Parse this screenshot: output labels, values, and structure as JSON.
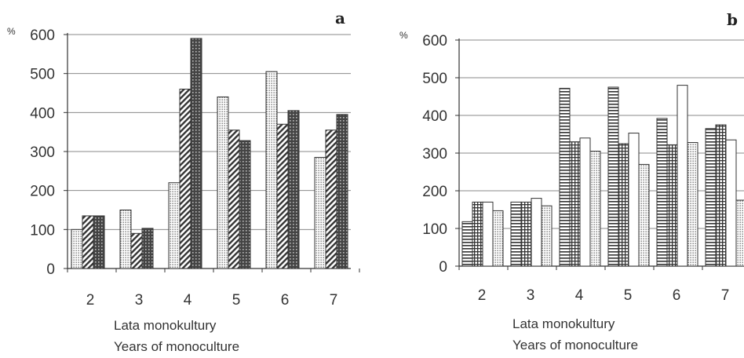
{
  "chart_data": [
    {
      "type": "bar",
      "panel_label": "a",
      "unit": "%",
      "categories": [
        "2",
        "3",
        "4",
        "5",
        "6",
        "7"
      ],
      "yticks": [
        "0",
        "100",
        "200",
        "300",
        "400",
        "500",
        "600"
      ],
      "ylim": [
        0,
        600
      ],
      "xlabel": [
        "Lata monokultury",
        "Years of monoculture"
      ],
      "grid": true,
      "legend": "none",
      "series": [
        {
          "pattern": "dots",
          "values": [
            100,
            150,
            220,
            440,
            505,
            285
          ]
        },
        {
          "pattern": "diagonal",
          "values": [
            135,
            90,
            460,
            355,
            370,
            355
          ]
        },
        {
          "pattern": "crosshatch",
          "values": [
            135,
            103,
            590,
            328,
            405,
            395
          ]
        }
      ]
    },
    {
      "type": "bar",
      "panel_label": "b",
      "unit": "%",
      "categories": [
        "2",
        "3",
        "4",
        "5",
        "6",
        "7"
      ],
      "yticks": [
        "0",
        "100",
        "200",
        "300",
        "400",
        "500",
        "600"
      ],
      "ylim": [
        0,
        600
      ],
      "xlabel": [
        "Lata monokultury",
        "Years of monoculture"
      ],
      "grid": true,
      "legend": "none",
      "series": [
        {
          "pattern": "horizontal",
          "values": [
            118,
            170,
            472,
            475,
            392,
            365
          ]
        },
        {
          "pattern": "grid",
          "values": [
            170,
            170,
            330,
            325,
            322,
            375
          ]
        },
        {
          "pattern": "open",
          "values": [
            170,
            180,
            340,
            353,
            480,
            335
          ]
        },
        {
          "pattern": "dots",
          "values": [
            147,
            160,
            305,
            270,
            328,
            175
          ]
        }
      ]
    }
  ]
}
